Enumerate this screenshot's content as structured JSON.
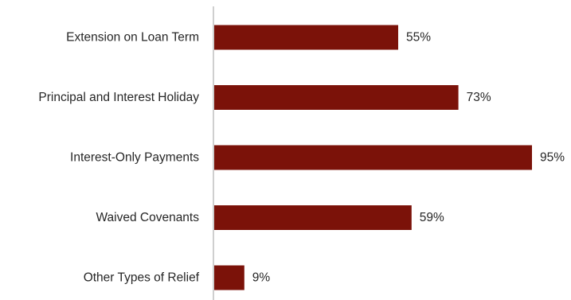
{
  "chart_data": {
    "type": "bar",
    "orientation": "horizontal",
    "categories": [
      "Extension on Loan Term",
      "Principal and Interest Holiday",
      "Interest-Only Payments",
      "Waived Covenants",
      "Other Types of Relief"
    ],
    "values": [
      55,
      73,
      95,
      59,
      9
    ],
    "value_labels": [
      "55%",
      "73%",
      "95%",
      "59%",
      "9%"
    ],
    "unit": "%",
    "xlim": [
      0,
      100
    ],
    "grid": false,
    "legend": "none",
    "bar_color": "#7b1209",
    "axis_color": "#bfbfbf",
    "text_color": "#262626"
  }
}
